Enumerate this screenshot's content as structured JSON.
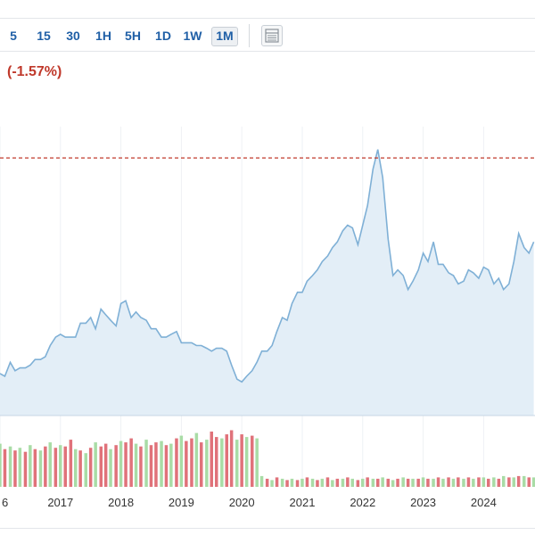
{
  "toolbar": {
    "timeframes": [
      "5",
      "15",
      "30",
      "1H",
      "5H",
      "1D",
      "1W",
      "1M"
    ],
    "active": "1M",
    "layout_icon": "table-layout-icon"
  },
  "header": {
    "change_text": "(-1.57%)"
  },
  "colors": {
    "price_line": "#7fb0d6",
    "price_fill": "#e3eef7",
    "reference_line": "#c0392b",
    "volume_up": "#a9dca6",
    "volume_down": "#e0727a",
    "grid": "#eef1f4",
    "axis_text": "#333333",
    "toolbar_text": "#1f5fa6",
    "change_negative": "#c0392b"
  },
  "chart_data": {
    "type": "area",
    "x_axis": {
      "ticks": [
        "6",
        "2017",
        "2018",
        "2019",
        "2020",
        "2021",
        "2022",
        "2023",
        "2024"
      ],
      "start": 2016.0,
      "end": 2024.85
    },
    "y_range": [
      0,
      100
    ],
    "reference_line": 92,
    "price": {
      "x": [
        2016.0,
        2016.08,
        2016.17,
        2016.25,
        2016.33,
        2016.42,
        2016.5,
        2016.58,
        2016.67,
        2016.75,
        2016.83,
        2016.92,
        2017.0,
        2017.08,
        2017.17,
        2017.25,
        2017.33,
        2017.42,
        2017.5,
        2017.58,
        2017.67,
        2017.75,
        2017.83,
        2017.92,
        2018.0,
        2018.08,
        2018.17,
        2018.25,
        2018.33,
        2018.42,
        2018.5,
        2018.58,
        2018.67,
        2018.75,
        2018.83,
        2018.92,
        2019.0,
        2019.08,
        2019.17,
        2019.25,
        2019.33,
        2019.42,
        2019.5,
        2019.58,
        2019.67,
        2019.75,
        2019.83,
        2019.92,
        2020.0,
        2020.08,
        2020.17,
        2020.25,
        2020.33,
        2020.42,
        2020.5,
        2020.58,
        2020.67,
        2020.75,
        2020.83,
        2020.92,
        2021.0,
        2021.08,
        2021.17,
        2021.25,
        2021.33,
        2021.42,
        2021.5,
        2021.58,
        2021.67,
        2021.75,
        2021.83,
        2021.92,
        2022.0,
        2022.08,
        2022.17,
        2022.25,
        2022.33,
        2022.42,
        2022.5,
        2022.58,
        2022.67,
        2022.75,
        2022.83,
        2022.92,
        2023.0,
        2023.08,
        2023.17,
        2023.25,
        2023.33,
        2023.42,
        2023.5,
        2023.58,
        2023.67,
        2023.75,
        2023.83,
        2023.92,
        2024.0,
        2024.08,
        2024.17,
        2024.25,
        2024.33,
        2024.42,
        2024.5,
        2024.58,
        2024.67,
        2024.75,
        2024.83
      ],
      "y": [
        15,
        14,
        19,
        16,
        17,
        17,
        18,
        20,
        20,
        21,
        25,
        28,
        29,
        28,
        28,
        28,
        33,
        33,
        35,
        31,
        38,
        36,
        34,
        32,
        40,
        41,
        35,
        37,
        35,
        34,
        31,
        31,
        28,
        28,
        29,
        30,
        26,
        26,
        26,
        25,
        25,
        24,
        23,
        24,
        24,
        23,
        18,
        13,
        12,
        14,
        16,
        19,
        23,
        23,
        25,
        30,
        35,
        34,
        40,
        44,
        44,
        48,
        50,
        52,
        55,
        57,
        60,
        62,
        66,
        68,
        67,
        61,
        68,
        75,
        88,
        95,
        85,
        63,
        50,
        52,
        50,
        45,
        48,
        52,
        58,
        55,
        62,
        54,
        54,
        51,
        50,
        47,
        48,
        52,
        51,
        49,
        53,
        52,
        47,
        49,
        45,
        47,
        55,
        65,
        60,
        58,
        62
      ]
    },
    "volume": {
      "values": [
        32,
        28,
        30,
        27,
        29,
        26,
        31,
        28,
        27,
        30,
        33,
        29,
        31,
        30,
        35,
        28,
        27,
        25,
        29,
        33,
        30,
        32,
        28,
        31,
        34,
        33,
        36,
        32,
        30,
        35,
        31,
        33,
        34,
        31,
        32,
        36,
        38,
        34,
        36,
        40,
        33,
        35,
        41,
        37,
        36,
        39,
        42,
        35,
        39,
        37,
        38,
        36,
        8,
        6,
        5,
        7,
        6,
        5,
        6,
        5,
        6,
        7,
        6,
        5,
        6,
        7,
        5,
        6,
        6,
        7,
        6,
        5,
        6,
        7,
        6,
        6,
        7,
        6,
        5,
        6,
        7,
        6,
        6,
        6,
        7,
        6,
        6,
        7,
        6,
        7,
        6,
        7,
        6,
        7,
        6,
        7,
        7,
        6,
        7,
        6,
        8,
        7,
        7,
        8,
        8,
        7,
        7
      ],
      "up": [
        1,
        0,
        1,
        0,
        1,
        0,
        1,
        0,
        1,
        0,
        1,
        0,
        1,
        0,
        0,
        1,
        0,
        1,
        0,
        1,
        0,
        0,
        1,
        0,
        1,
        0,
        0,
        1,
        0,
        1,
        0,
        0,
        1,
        0,
        1,
        0,
        1,
        0,
        0,
        1,
        0,
        1,
        0,
        0,
        1,
        0,
        0,
        1,
        0,
        1,
        0,
        1,
        1,
        0,
        1,
        0,
        1,
        0,
        1,
        0,
        1,
        0,
        1,
        0,
        1,
        0,
        1,
        0,
        1,
        0,
        1,
        0,
        1,
        0,
        1,
        0,
        1,
        0,
        1,
        0,
        1,
        0,
        1,
        0,
        1,
        0,
        1,
        0,
        1,
        0,
        1,
        0,
        1,
        0,
        1,
        0,
        1,
        0,
        1,
        0,
        1,
        0,
        1,
        0,
        1,
        0,
        1
      ],
      "max": 45
    },
    "title": "",
    "xlabel": "",
    "ylabel": "",
    "grid": true,
    "legend": "none"
  }
}
